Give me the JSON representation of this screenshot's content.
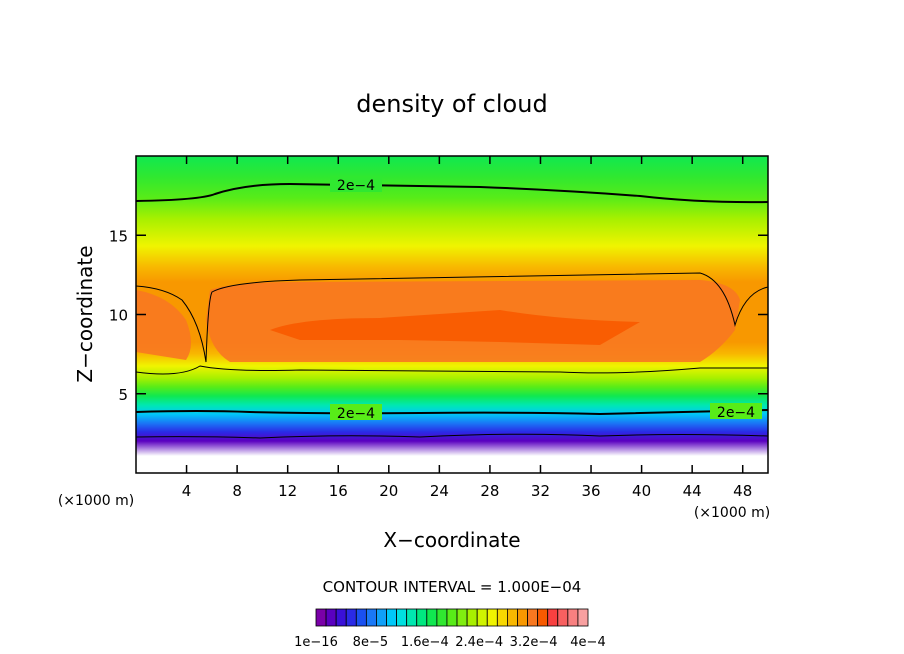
{
  "chart_data": {
    "type": "heatmap",
    "title": "density of cloud",
    "xlabel": "X−coordinate",
    "ylabel": "Z−coordinate",
    "x_unit_left": "(×1000 m)",
    "x_unit_right": "(×1000 m)",
    "xlim": [
      0,
      50
    ],
    "ylim": [
      0,
      20
    ],
    "x_ticks": [
      4,
      8,
      12,
      16,
      20,
      24,
      28,
      32,
      36,
      40,
      44,
      48
    ],
    "x_tick_labels": [
      "4",
      "8",
      "12",
      "16",
      "20",
      "24",
      "28",
      "32",
      "36",
      "40",
      "44",
      "48"
    ],
    "y_ticks": [
      5,
      10,
      15
    ],
    "y_tick_labels": [
      "5",
      "10",
      "15"
    ],
    "contour_interval_text": "CONTOUR INTERVAL = 1.000E−04",
    "contour_labels": [
      "2e−4",
      "2e−4",
      "2e−4"
    ],
    "colorbar_labels": [
      "1e−16",
      "8e−5",
      "1.6e−4",
      "2.4e−4",
      "3.2e−4",
      "4e−4"
    ],
    "colorbar_colors": [
      "#7a00a8",
      "#5a00c0",
      "#3a10d8",
      "#2a2ae6",
      "#1a50f0",
      "#1a78f6",
      "#10a0f8",
      "#00c8f8",
      "#00e0e0",
      "#00e8b0",
      "#00e880",
      "#10e850",
      "#30e830",
      "#58ec18",
      "#80ee10",
      "#a8f000",
      "#d0f400",
      "#f0f400",
      "#f8d800",
      "#f8b800",
      "#f89800",
      "#f87820",
      "#f85a00",
      "#f84040",
      "#f86060",
      "#f88080",
      "#f8a0a0"
    ]
  }
}
